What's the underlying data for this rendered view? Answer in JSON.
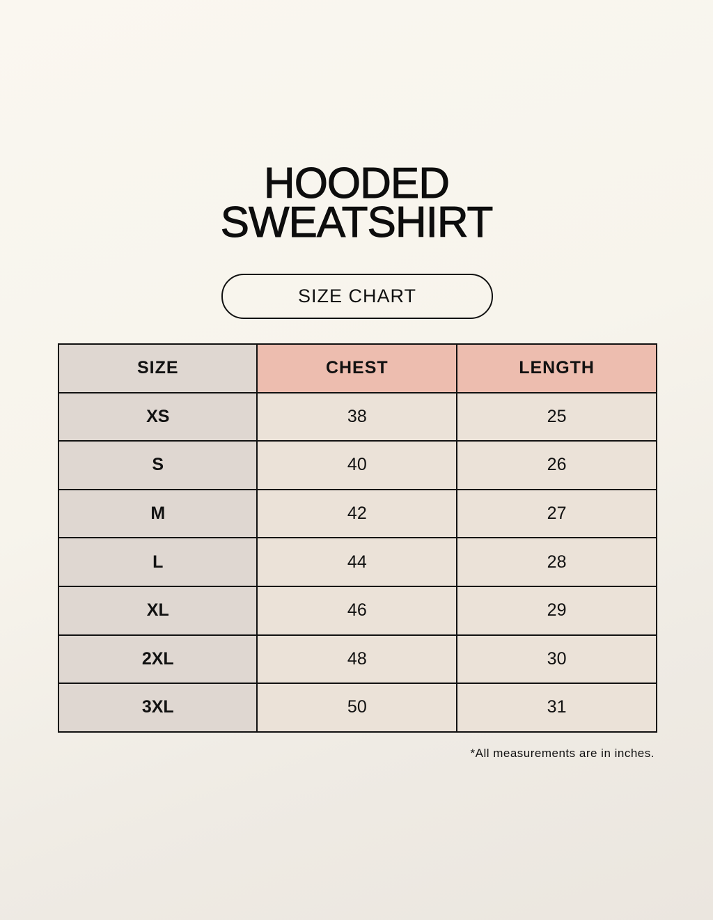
{
  "title_line1": "HOODED",
  "title_line2": "SWEATSHIRT",
  "subtitle": "SIZE CHART",
  "table": {
    "headers": [
      "SIZE",
      "CHEST",
      "LENGTH"
    ],
    "rows": [
      [
        "XS",
        "38",
        "25"
      ],
      [
        "S",
        "40",
        "26"
      ],
      [
        "M",
        "42",
        "27"
      ],
      [
        "L",
        "44",
        "28"
      ],
      [
        "XL",
        "46",
        "29"
      ],
      [
        "2XL",
        "48",
        "30"
      ],
      [
        "3XL",
        "50",
        "31"
      ]
    ]
  },
  "note": "*All measurements are in inches.",
  "colors": {
    "size_column": "#dfd7d1",
    "header_accent": "#edbdaf",
    "cell": "#ebe2d8"
  }
}
